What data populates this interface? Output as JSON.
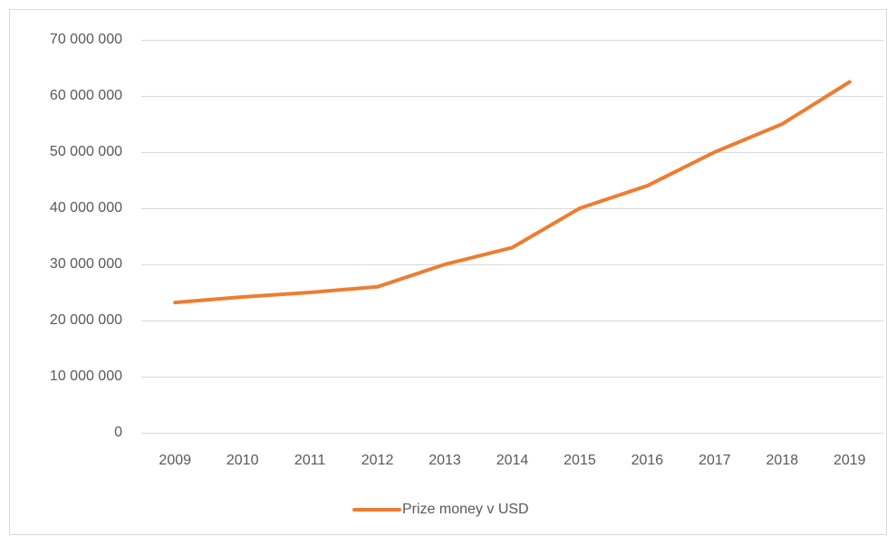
{
  "chart_data": {
    "type": "line",
    "categories": [
      "2009",
      "2010",
      "2011",
      "2012",
      "2013",
      "2014",
      "2015",
      "2016",
      "2017",
      "2018",
      "2019"
    ],
    "series": [
      {
        "name": "Prize money v USD",
        "color": "#ed7d31",
        "values": [
          23200000,
          24200000,
          25000000,
          26000000,
          30000000,
          33000000,
          40000000,
          44000000,
          50000000,
          55000000,
          62500000
        ]
      }
    ],
    "ylim": [
      0,
      70000000
    ],
    "yticks": [
      0,
      {
        "value": 10000000,
        "label": "10 000 000"
      },
      {
        "value": 20000000,
        "label": "20 000 000"
      },
      {
        "value": 30000000,
        "label": "30 000 000"
      },
      {
        "value": 40000000,
        "label": "40 000 000"
      },
      {
        "value": 50000000,
        "label": "50 000 000"
      },
      {
        "value": 60000000,
        "label": "60 000 000"
      },
      {
        "value": 70000000,
        "label": "70 000 000"
      }
    ],
    "grid": true,
    "legend": "bottom"
  }
}
